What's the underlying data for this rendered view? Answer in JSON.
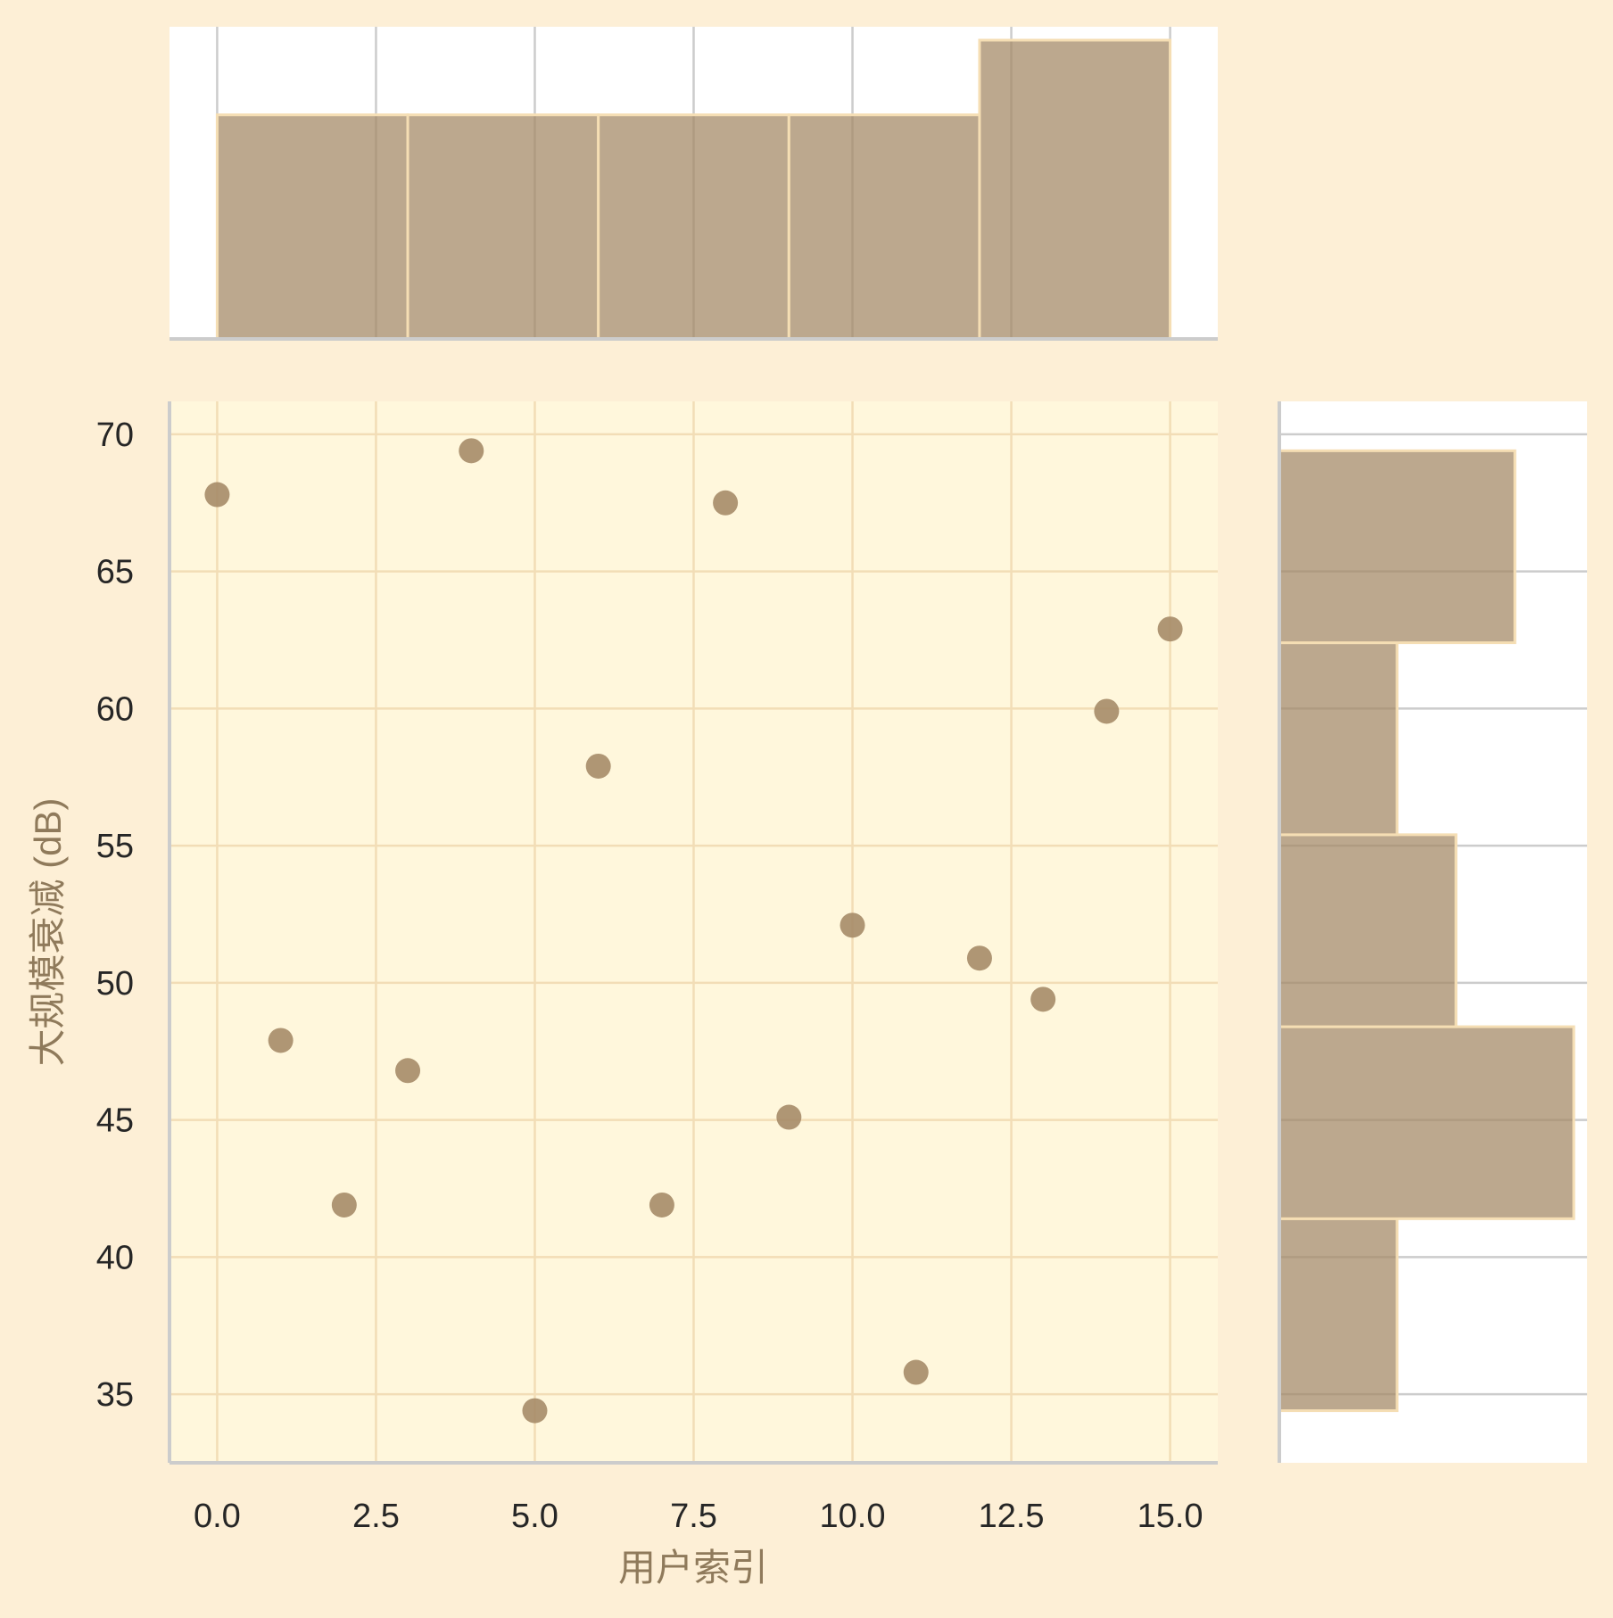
{
  "chart_data": {
    "type": "scatter",
    "title": "",
    "xlabel": "用户索引",
    "ylabel": "大规模衰减 (dB)",
    "xlim": [
      -0.75,
      15.75
    ],
    "ylim": [
      32.5,
      71.2
    ],
    "xticks": [
      0.0,
      2.5,
      5.0,
      7.5,
      10.0,
      12.5,
      15.0
    ],
    "xtick_labels": [
      "0.0",
      "2.5",
      "5.0",
      "7.5",
      "10.0",
      "12.5",
      "15.0"
    ],
    "yticks": [
      35,
      40,
      45,
      50,
      55,
      60,
      65,
      70
    ],
    "ytick_labels": [
      "35",
      "40",
      "45",
      "50",
      "55",
      "60",
      "65",
      "70"
    ],
    "grid": true,
    "points": [
      {
        "x": 0,
        "y": 67.8
      },
      {
        "x": 1,
        "y": 47.9
      },
      {
        "x": 2,
        "y": 41.9
      },
      {
        "x": 3,
        "y": 46.8
      },
      {
        "x": 4,
        "y": 69.4
      },
      {
        "x": 5,
        "y": 34.4
      },
      {
        "x": 6,
        "y": 57.9
      },
      {
        "x": 7,
        "y": 41.9
      },
      {
        "x": 8,
        "y": 67.5
      },
      {
        "x": 9,
        "y": 45.1
      },
      {
        "x": 10,
        "y": 52.1
      },
      {
        "x": 11,
        "y": 35.8
      },
      {
        "x": 12,
        "y": 50.9
      },
      {
        "x": 13,
        "y": 49.4
      },
      {
        "x": 14,
        "y": 59.9
      },
      {
        "x": 15,
        "y": 62.9
      }
    ],
    "marginal_x": {
      "type": "histogram",
      "bin_edges": [
        0,
        3,
        6,
        9,
        12,
        15
      ],
      "counts": [
        3,
        3,
        3,
        3,
        4
      ]
    },
    "marginal_y": {
      "type": "histogram",
      "bin_edges": [
        34.4,
        41.4,
        48.4,
        55.4,
        62.4,
        69.4
      ],
      "counts": [
        2,
        5,
        3,
        2,
        4
      ]
    },
    "colors": {
      "background": "#fdefd6",
      "joint_bg": "#fff7dc",
      "joint_grid": "#f2ddb6",
      "marginal_bg": "#ffffff",
      "marginal_grid": "#cccccc",
      "axis_spine": "#cccccc",
      "point": "#a68b68",
      "bar_fill": "#a68b68",
      "bar_edge": "#f5deb4"
    }
  }
}
